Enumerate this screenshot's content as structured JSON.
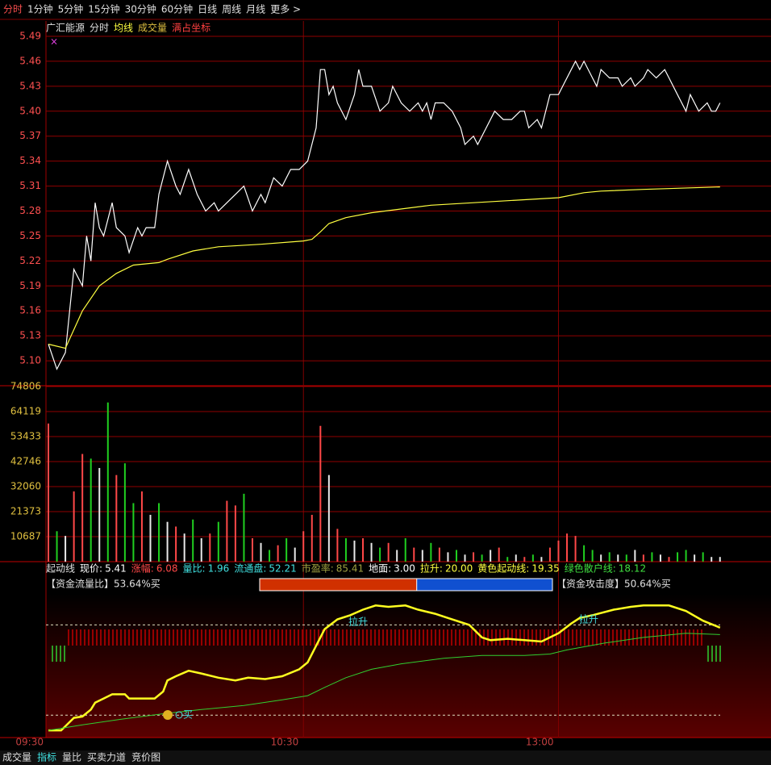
{
  "toolbar": {
    "tabs": [
      "分时",
      "1分钟",
      "5分钟",
      "15分钟",
      "30分钟",
      "60分钟",
      "日线",
      "周线",
      "月线",
      "更多 >"
    ]
  },
  "chart_data": [
    {
      "type": "line",
      "title": "广汇能源",
      "mode_label": "满占坐标",
      "xlim": [
        0,
        170
      ],
      "ylim": [
        5.07,
        5.49
      ],
      "yticks": [
        5.49,
        5.46,
        5.43,
        {
          "value": 5.4,
          "label": "5.40"
        },
        5.37,
        5.34,
        5.31,
        5.28,
        5.25,
        5.22,
        5.19,
        5.16,
        5.13,
        {
          "value": 5.1,
          "label": "5.10"
        }
      ],
      "grid": true,
      "series": [
        {
          "name": "分时",
          "color": "#ffffff",
          "x": [
            0,
            2,
            4,
            6,
            8,
            9,
            10,
            11,
            12,
            13,
            15,
            16,
            18,
            19,
            21,
            22,
            23,
            25,
            26,
            28,
            30,
            31,
            33,
            35,
            37,
            39,
            40,
            42,
            44,
            46,
            48,
            50,
            51,
            53,
            55,
            57,
            59,
            61,
            63,
            64,
            65,
            66,
            67,
            68,
            70,
            72,
            73,
            74,
            76,
            78,
            80,
            81,
            83,
            85,
            87,
            88,
            89,
            90,
            91,
            93,
            95,
            97,
            98,
            100,
            101,
            103,
            105,
            107,
            109,
            111,
            112,
            113,
            115,
            116,
            118,
            120,
            121,
            123,
            124,
            125,
            126,
            128,
            129,
            130,
            132,
            134,
            135,
            137,
            138,
            140,
            141,
            143,
            145,
            146,
            148,
            150,
            151,
            153,
            155,
            156,
            157,
            158
          ],
          "values": [
            5.12,
            5.09,
            5.11,
            5.21,
            5.19,
            5.25,
            5.22,
            5.29,
            5.26,
            5.25,
            5.29,
            5.26,
            5.25,
            5.23,
            5.26,
            5.25,
            5.26,
            5.26,
            5.3,
            5.34,
            5.31,
            5.3,
            5.33,
            5.3,
            5.28,
            5.29,
            5.28,
            5.29,
            5.3,
            5.31,
            5.28,
            5.3,
            5.29,
            5.32,
            5.31,
            5.33,
            5.33,
            5.34,
            5.38,
            5.45,
            5.45,
            5.42,
            5.43,
            5.41,
            5.39,
            5.42,
            5.45,
            5.43,
            5.43,
            5.4,
            5.41,
            5.43,
            5.41,
            5.4,
            5.41,
            5.4,
            5.41,
            5.39,
            5.41,
            5.41,
            5.4,
            5.38,
            5.36,
            5.37,
            5.36,
            5.38,
            5.4,
            5.39,
            5.39,
            5.4,
            5.4,
            5.38,
            5.39,
            5.38,
            5.42,
            5.42,
            5.43,
            5.45,
            5.46,
            5.45,
            5.46,
            5.44,
            5.43,
            5.45,
            5.44,
            5.44,
            5.43,
            5.44,
            5.43,
            5.44,
            5.45,
            5.44,
            5.45,
            5.44,
            5.42,
            5.4,
            5.42,
            5.4,
            5.41,
            5.4,
            5.4,
            5.41
          ]
        },
        {
          "name": "均线",
          "color": "#ffff40",
          "x": [
            0,
            4,
            8,
            12,
            16,
            20,
            26,
            28,
            34,
            40,
            50,
            60,
            62,
            64,
            66,
            70,
            76,
            90,
            110,
            120,
            126,
            130,
            140,
            158
          ],
          "values": [
            5.12,
            5.115,
            5.16,
            5.19,
            5.205,
            5.215,
            5.218,
            5.222,
            5.232,
            5.237,
            5.24,
            5.244,
            5.246,
            5.255,
            5.265,
            5.272,
            5.278,
            5.287,
            5.293,
            5.296,
            5.302,
            5.304,
            5.306,
            5.309
          ]
        }
      ]
    },
    {
      "type": "bar",
      "xlim": [
        0,
        170
      ],
      "ylim": [
        0,
        74806
      ],
      "yticks": [
        74806,
        64119,
        53433,
        42746,
        32060,
        21373,
        10687
      ],
      "grid": true,
      "series": [
        {
          "name": "成交量",
          "color": "#e0c040",
          "x": [
            0,
            2,
            4,
            6,
            8,
            10,
            12,
            14,
            16,
            18,
            20,
            22,
            24,
            26,
            28,
            30,
            32,
            34,
            36,
            38,
            40,
            42,
            44,
            46,
            48,
            50,
            52,
            54,
            56,
            58,
            60,
            62,
            64,
            66,
            68,
            70,
            72,
            74,
            76,
            78,
            80,
            82,
            84,
            86,
            88,
            90,
            92,
            94,
            96,
            98,
            100,
            102,
            104,
            106,
            108,
            110,
            112,
            114,
            116,
            118,
            120,
            122,
            124,
            126,
            128,
            130,
            132,
            134,
            136,
            138,
            140,
            142,
            144,
            146,
            148,
            150,
            152,
            154,
            156,
            158
          ],
          "values": [
            59000,
            13000,
            11000,
            30000,
            46000,
            44000,
            40000,
            68000,
            37000,
            42000,
            25000,
            30000,
            20000,
            25000,
            17000,
            15000,
            12000,
            18000,
            10000,
            12000,
            17000,
            26000,
            24000,
            29000,
            10000,
            8000,
            5000,
            7000,
            10000,
            6000,
            13000,
            20000,
            58000,
            37000,
            14000,
            10000,
            9000,
            10000,
            8000,
            6000,
            8000,
            5000,
            10000,
            6000,
            5000,
            8000,
            6000,
            4000,
            5000,
            3000,
            4000,
            3000,
            5000,
            6000,
            2000,
            3000,
            2000,
            3000,
            2000,
            6000,
            9000,
            12000,
            11000,
            7000,
            5000,
            3000,
            4000,
            3000,
            3000,
            5000,
            3000,
            4000,
            3000,
            2000,
            4000,
            5000,
            3000,
            4000,
            2000,
            2000
          ],
          "colors": [
            "#ff4848",
            "#20d020",
            "#e8e8e8",
            "#ff4848",
            "#ff4848",
            "#20d020",
            "#e8e8e8",
            "#20d020",
            "#ff4848",
            "#20d020",
            "#20d020",
            "#ff4848",
            "#e8e8e8",
            "#20d020",
            "#e8e8e8",
            "#ff4848",
            "#e8e8e8",
            "#20d020",
            "#e8e8e8",
            "#ff4848",
            "#20d020",
            "#ff4848",
            "#ff4848",
            "#20d020",
            "#ff4848",
            "#e8e8e8",
            "#20d020",
            "#ff4848",
            "#20d020",
            "#e8e8e8",
            "#ff4848",
            "#ff4848",
            "#ff4848",
            "#e8e8e8",
            "#ff4848",
            "#20d020",
            "#e8e8e8",
            "#ff4848",
            "#e8e8e8",
            "#20d020",
            "#ff4848",
            "#e8e8e8",
            "#20d020",
            "#ff4848",
            "#e8e8e8",
            "#20d020",
            "#ff4848",
            "#e8e8e8",
            "#20d020",
            "#e8e8e8",
            "#ff4848",
            "#20d020",
            "#e8e8e8",
            "#ff4848",
            "#20d020",
            "#e8e8e8",
            "#ff4848",
            "#20d020",
            "#e8e8e8",
            "#ff4848",
            "#ff4848",
            "#ff4848",
            "#ff4848",
            "#20d020",
            "#20d020",
            "#e8e8e8",
            "#20d020",
            "#e8e8e8",
            "#20d020",
            "#e8e8e8",
            "#ff4848",
            "#20d020",
            "#e8e8e8",
            "#ff4848",
            "#20d020",
            "#20d020",
            "#e8e8e8",
            "#20d020",
            "#e8e8e8",
            "#e8e8e8"
          ]
        }
      ]
    },
    {
      "type": "line",
      "title": "起动线",
      "info": [
        {
          "label": "现价:",
          "value": "5.41",
          "color": "#ffffff"
        },
        {
          "label": "涨幅:",
          "value": "6.08",
          "color": "#ff4848"
        },
        {
          "label": "量比:",
          "value": "1.96",
          "color": "#40e0e0"
        },
        {
          "label": "流通盘:",
          "value": "52.21",
          "color": "#40e0e0"
        },
        {
          "label": "市盈率:",
          "value": "85.41",
          "color": "#a0a040"
        },
        {
          "label": "地面:",
          "value": "3.00",
          "color": "#ffffff"
        },
        {
          "label": "拉升:",
          "value": "20.00",
          "color": "#ffff40"
        },
        {
          "label": "黄色起动线:",
          "value": "19.35",
          "color": "#ffff40"
        },
        {
          "label": "绿色散户线:",
          "value": "18.12",
          "color": "#40e040"
        }
      ],
      "flow_label": "【资金流量比】",
      "flow_ratio": 53.64,
      "flow_unit": "%买",
      "attack_label": "【资金攻击度】",
      "attack_ratio": 50.64,
      "attack_unit": " %买",
      "annotations": [
        "拉升",
        "拉升",
        "买"
      ],
      "xlim": [
        0,
        170
      ],
      "ylim": [
        0,
        100
      ],
      "xticks": [
        {
          "value": 0,
          "label": "09:30"
        },
        {
          "value": 60,
          "label": "10:30"
        },
        {
          "value": 120,
          "label": "13:00"
        }
      ],
      "reference_lines": [
        80,
        15
      ],
      "series": [
        {
          "name": "黄色起动线",
          "color": "#ffff20",
          "x": [
            0,
            3,
            6,
            8,
            10,
            11,
            13,
            15,
            18,
            19,
            25,
            27,
            28,
            30,
            33,
            36,
            40,
            44,
            47,
            51,
            55,
            59,
            61,
            63,
            65,
            68,
            71,
            74,
            77,
            80,
            84,
            87,
            91,
            94,
            99,
            102,
            104,
            108,
            112,
            116,
            120,
            123,
            125,
            128,
            133,
            137,
            140,
            146,
            150,
            154,
            158
          ],
          "values": [
            4,
            4,
            13,
            14,
            19,
            24,
            27,
            30,
            30,
            27,
            27,
            32,
            40,
            43,
            47,
            45,
            42,
            40,
            42,
            41,
            43,
            48,
            53,
            65,
            77,
            84,
            87,
            91,
            94,
            93,
            94,
            91,
            88,
            85,
            80,
            71,
            69,
            70,
            69,
            68,
            74,
            81,
            85,
            87,
            91,
            93,
            94,
            94,
            90,
            83,
            78
          ]
        },
        {
          "name": "绿色散户线",
          "color": "#30d030",
          "x": [
            0,
            8,
            17,
            27,
            36,
            46,
            55,
            61,
            65,
            70,
            76,
            83,
            93,
            102,
            112,
            118,
            122,
            131,
            140,
            150,
            158
          ],
          "values": [
            4,
            8,
            12,
            16,
            19,
            22,
            26,
            29,
            35,
            42,
            48,
            52,
            56,
            58,
            58,
            59,
            62,
            67,
            71,
            74,
            73
          ]
        }
      ]
    }
  ],
  "bottom_tabs": [
    "成交量",
    "指标",
    "量比",
    "买卖力道",
    "竞价图"
  ]
}
